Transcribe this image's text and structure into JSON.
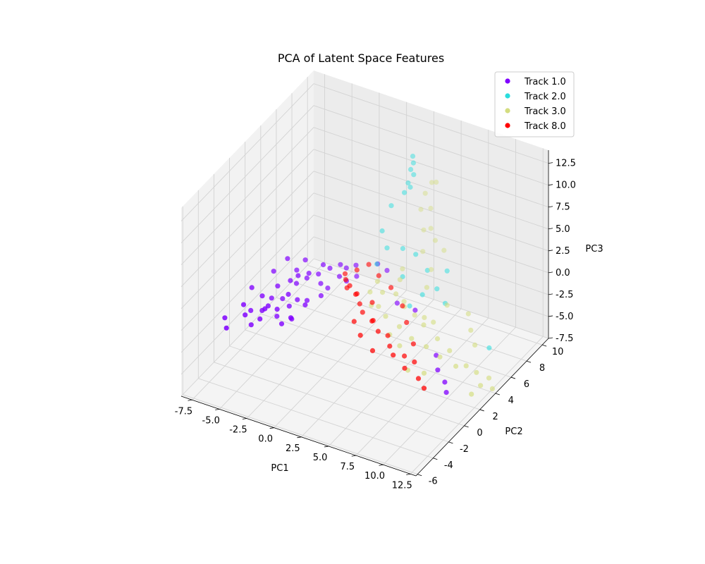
{
  "chart_data": {
    "type": "scatter",
    "projection": "3d",
    "title": "PCA of Latent Space Features",
    "xlabel": "PC1",
    "ylabel": "PC2",
    "zlabel": "PC3",
    "xlim": [
      -8.5,
      13
    ],
    "ylim": [
      -6.2,
      10.8
    ],
    "zlim": [
      -7.5,
      14
    ],
    "xticks": [
      "-7.5",
      "-5.0",
      "-2.5",
      "0.0",
      "2.5",
      "5.0",
      "7.5",
      "10.0",
      "12.5"
    ],
    "yticks": [
      "-6",
      "-4",
      "-2",
      "0",
      "2",
      "4",
      "6",
      "8",
      "10"
    ],
    "zticks": [
      "-7.5",
      "-5.0",
      "-2.5",
      "0.0",
      "2.5",
      "5.0",
      "7.5",
      "10.0",
      "12.5"
    ],
    "grid": true,
    "legend_position": "top-right",
    "series": [
      {
        "name": "Track 1.0",
        "color": "#8000ff",
        "points": [
          [
            -7.5,
            -2.0,
            -2.0
          ],
          [
            -7.0,
            -2.5,
            -2.5
          ],
          [
            -6.5,
            -1.0,
            -1.0
          ],
          [
            -6.0,
            -1.5,
            -1.5
          ],
          [
            -6.2,
            -0.5,
            -2.0
          ],
          [
            -5.8,
            -1.0,
            -3.0
          ],
          [
            -5.5,
            0.0,
            -0.5
          ],
          [
            -5.3,
            -0.3,
            -1.8
          ],
          [
            -5.0,
            0.5,
            -1.0
          ],
          [
            -5.0,
            -1.0,
            -2.0
          ],
          [
            -4.8,
            1.0,
            0.0
          ],
          [
            -4.6,
            -0.5,
            -0.8
          ],
          [
            -4.5,
            1.2,
            -1.5
          ],
          [
            -4.3,
            0.2,
            -2.5
          ],
          [
            -4.0,
            1.5,
            0.5
          ],
          [
            -4.0,
            -0.2,
            -1.2
          ],
          [
            -3.8,
            2.0,
            -0.2
          ],
          [
            -3.6,
            0.8,
            -1.6
          ],
          [
            -3.5,
            1.8,
            1.0
          ],
          [
            -3.3,
            -0.6,
            -2.2
          ],
          [
            -3.2,
            2.5,
            0.2
          ],
          [
            -3.0,
            1.0,
            -0.8
          ],
          [
            -2.8,
            2.2,
            1.2
          ],
          [
            -2.8,
            0.0,
            -2.0
          ],
          [
            -2.5,
            3.0,
            0.5
          ],
          [
            -2.4,
            1.4,
            -1.0
          ],
          [
            -2.2,
            3.2,
            1.5
          ],
          [
            -2.0,
            2.6,
            0.0
          ],
          [
            -1.8,
            3.5,
            1.0
          ],
          [
            -1.5,
            2.8,
            -0.5
          ],
          [
            -1.2,
            4.0,
            1.2
          ],
          [
            -1.0,
            3.6,
            0.3
          ],
          [
            -0.8,
            4.2,
            0.8
          ],
          [
            -0.5,
            3.8,
            -0.2
          ],
          [
            -0.2,
            4.6,
            1.0
          ],
          [
            0.0,
            4.4,
            0.0
          ],
          [
            -4.2,
            2.6,
            0.6
          ],
          [
            -3.7,
            3.0,
            1.6
          ],
          [
            -3.4,
            0.4,
            0.2
          ],
          [
            -2.6,
            -0.4,
            -1.4
          ],
          [
            -2.0,
            0.6,
            -0.6
          ],
          [
            -1.4,
            1.8,
            -0.4
          ],
          [
            -6.6,
            0.2,
            -0.2
          ],
          [
            -5.6,
            1.6,
            0.8
          ],
          [
            -4.9,
            2.4,
            1.8
          ],
          [
            -4.4,
            -1.2,
            -0.4
          ],
          [
            1.5,
            5.0,
            1.5
          ],
          [
            2.0,
            5.5,
            0.5
          ],
          [
            4.0,
            4.0,
            -1.0
          ],
          [
            6.0,
            3.5,
            -0.5
          ],
          [
            9.0,
            2.0,
            -3.0
          ],
          [
            9.5,
            1.5,
            -4.0
          ],
          [
            10.5,
            1.0,
            -4.5
          ],
          [
            11.0,
            0.5,
            -5.0
          ]
        ]
      },
      {
        "name": "Track 2.0",
        "color": "#2adddd",
        "points": [
          [
            2.0,
            8.8,
            10.5
          ],
          [
            2.2,
            8.6,
            10.0
          ],
          [
            2.1,
            8.4,
            9.4
          ],
          [
            2.3,
            8.5,
            8.8
          ],
          [
            2.0,
            8.2,
            8.0
          ],
          [
            1.8,
            8.0,
            7.0
          ],
          [
            2.2,
            8.2,
            7.6
          ],
          [
            0.6,
            8.0,
            5.0
          ],
          [
            0.2,
            7.4,
            2.5
          ],
          [
            0.5,
            7.6,
            0.5
          ],
          [
            1.8,
            7.8,
            0.8
          ],
          [
            0.0,
            7.0,
            -1.0
          ],
          [
            2.5,
            6.8,
            -1.2
          ],
          [
            3.2,
            7.5,
            1.0
          ],
          [
            4.2,
            7.6,
            -0.5
          ],
          [
            5.5,
            7.0,
            -1.5
          ],
          [
            6.0,
            7.6,
            0.2
          ],
          [
            4.6,
            6.4,
            -2.0
          ],
          [
            6.4,
            6.8,
            -2.6
          ],
          [
            4.0,
            5.6,
            -2.8
          ],
          [
            11.0,
            6.0,
            -5.0
          ]
        ]
      },
      {
        "name": "Track 3.0",
        "color": "#d4dd80",
        "points": [
          [
            3.6,
            9.0,
            8.0
          ],
          [
            4.0,
            9.0,
            8.2
          ],
          [
            3.0,
            9.0,
            6.5
          ],
          [
            3.5,
            9.0,
            5.0
          ],
          [
            2.6,
            9.0,
            4.5
          ],
          [
            3.8,
            8.6,
            3.2
          ],
          [
            3.0,
            8.8,
            2.5
          ],
          [
            4.2,
            8.6,
            2.0
          ],
          [
            3.2,
            8.4,
            0.5
          ],
          [
            5.0,
            8.6,
            1.2
          ],
          [
            4.4,
            7.8,
            -0.5
          ],
          [
            2.2,
            7.2,
            -0.8
          ],
          [
            1.2,
            5.4,
            -1.0
          ],
          [
            0.8,
            5.0,
            -2.0
          ],
          [
            1.8,
            5.2,
            -1.8
          ],
          [
            2.6,
            5.8,
            -2.2
          ],
          [
            3.2,
            6.0,
            -3.0
          ],
          [
            3.8,
            5.2,
            -2.6
          ],
          [
            4.6,
            5.4,
            -3.4
          ],
          [
            5.2,
            5.8,
            -3.8
          ],
          [
            6.0,
            4.6,
            -3.2
          ],
          [
            5.6,
            3.6,
            -4.0
          ],
          [
            6.8,
            3.8,
            -4.6
          ],
          [
            7.4,
            4.4,
            -4.0
          ],
          [
            8.2,
            3.6,
            -5.0
          ],
          [
            8.8,
            4.0,
            -4.4
          ],
          [
            9.8,
            3.4,
            -5.2
          ],
          [
            10.6,
            3.6,
            -5.0
          ],
          [
            11.4,
            3.8,
            -5.6
          ],
          [
            12.2,
            3.2,
            -6.2
          ],
          [
            12.4,
            4.0,
            -6.0
          ],
          [
            13.0,
            3.6,
            -6.6
          ],
          [
            11.8,
            2.6,
            -6.8
          ],
          [
            7.6,
            2.4,
            -6.0
          ],
          [
            6.4,
            2.0,
            -5.8
          ],
          [
            2.0,
            4.4,
            -2.6
          ],
          [
            2.8,
            4.2,
            -3.2
          ],
          [
            4.2,
            4.0,
            -3.6
          ],
          [
            1.2,
            4.6,
            -3.0
          ],
          [
            8.8,
            6.4,
            -2.4
          ],
          [
            9.6,
            5.6,
            -3.2
          ],
          [
            7.0,
            6.2,
            -2.0
          ],
          [
            5.0,
            6.4,
            -1.0
          ],
          [
            2.4,
            6.6,
            -1.4
          ],
          [
            10.4,
            5.0,
            -4.0
          ],
          [
            3.6,
            3.6,
            -4.4
          ],
          [
            4.8,
            3.2,
            -4.8
          ],
          [
            6.6,
            5.0,
            -3.0
          ]
        ]
      },
      {
        "name": "Track 8.0",
        "color": "#ff0000",
        "points": [
          [
            -1.2,
            4.6,
            -0.4
          ],
          [
            -1.0,
            4.4,
            -0.8
          ],
          [
            -0.6,
            4.0,
            -1.2
          ],
          [
            -0.2,
            3.8,
            -0.6
          ],
          [
            0.2,
            4.0,
            -1.6
          ],
          [
            0.6,
            3.6,
            -1.0
          ],
          [
            1.0,
            3.4,
            -1.8
          ],
          [
            1.4,
            3.2,
            -2.4
          ],
          [
            2.0,
            3.6,
            -1.4
          ],
          [
            2.4,
            3.0,
            -2.8
          ],
          [
            2.8,
            2.6,
            -2.2
          ],
          [
            3.4,
            2.4,
            -3.0
          ],
          [
            4.0,
            2.8,
            -3.6
          ],
          [
            4.6,
            2.2,
            -4.0
          ],
          [
            5.2,
            1.8,
            -4.4
          ],
          [
            5.8,
            2.4,
            -4.8
          ],
          [
            6.4,
            1.6,
            -5.2
          ],
          [
            7.0,
            2.0,
            -4.6
          ],
          [
            7.8,
            1.4,
            -5.6
          ],
          [
            3.0,
            4.6,
            -0.2
          ],
          [
            1.6,
            5.0,
            0.2
          ],
          [
            0.4,
            5.4,
            0.6
          ],
          [
            4.2,
            4.4,
            -1.6
          ],
          [
            5.0,
            3.8,
            -2.6
          ],
          [
            3.6,
            1.4,
            -4.2
          ],
          [
            2.2,
            1.8,
            -3.4
          ],
          [
            1.2,
            2.4,
            -2.8
          ],
          [
            6.2,
            3.0,
            -3.8
          ],
          [
            8.6,
            1.0,
            -6.0
          ],
          [
            -0.4,
            5.0,
            0.0
          ]
        ]
      }
    ]
  }
}
